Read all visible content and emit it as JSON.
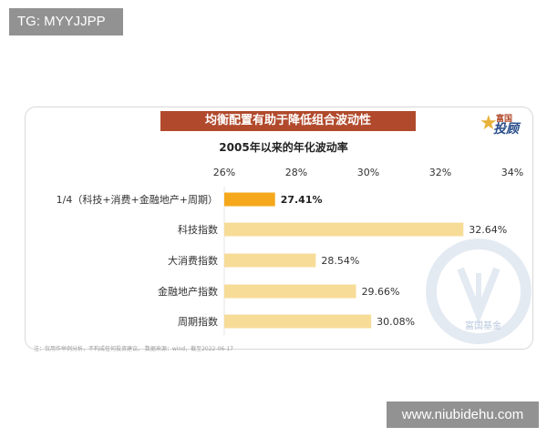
{
  "watermarks": {
    "top": "TG: MYYJJPP",
    "bottom": "www.niubidehu.com"
  },
  "banner": "均衡配置有助于降低组合波动性",
  "logo": {
    "small": "富国",
    "main": "投顾",
    "corner": "富国基金"
  },
  "footnote": "注：仅用作举例分析，不构成任何投资建议。 数据来源：wind，截至2022-06-17",
  "chart_data": {
    "type": "bar",
    "orientation": "horizontal",
    "title": "2005年以来的年化波动率",
    "categories": [
      "1/4（科技+消费+金融地产+周期）",
      "科技指数",
      "大消费指数",
      "金融地产指数",
      "周期指数"
    ],
    "values": [
      27.41,
      32.64,
      28.54,
      29.66,
      30.08
    ],
    "value_labels": [
      "27.41%",
      "32.64%",
      "28.54%",
      "29.66%",
      "30.08%"
    ],
    "xlim": [
      26,
      34
    ],
    "ticks": [
      "26%",
      "28%",
      "30%",
      "32%",
      "34%"
    ],
    "tick_values": [
      26,
      28,
      30,
      32,
      34
    ],
    "axis_position": "top",
    "grid": false,
    "colors": {
      "highlight": "#f5a81c",
      "bar": "#f7dc98"
    }
  }
}
